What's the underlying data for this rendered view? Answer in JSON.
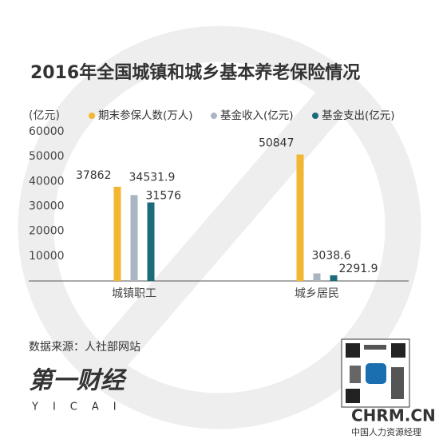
{
  "chart_data": {
    "type": "bar",
    "title": "2016年全国城镇和城乡基本养老保险情况",
    "y_label": "(亿元)",
    "categories": [
      "城镇职工",
      "城乡居民"
    ],
    "series": [
      {
        "name": "期末参保人数(万人)",
        "color": "#f2b632",
        "values": [
          37862,
          50847
        ]
      },
      {
        "name": "基金收入(亿元)",
        "color": "#a9b5c0",
        "values": [
          34531.9,
          3038.6
        ]
      },
      {
        "name": "基金支出(亿元)",
        "color": "#1b6b7b",
        "values": [
          31576,
          2291.9
        ]
      }
    ],
    "ylim": [
      0,
      60000
    ],
    "yticks": [
      10000,
      20000,
      30000,
      40000,
      50000,
      60000
    ],
    "grid": false,
    "legend": "top",
    "source": "数据来源：人社部网站",
    "logo": "第一财经",
    "logo_sub": "YICAI",
    "watermark": "CHRM.CN",
    "watermark_sub": "中国人力资源经理"
  }
}
